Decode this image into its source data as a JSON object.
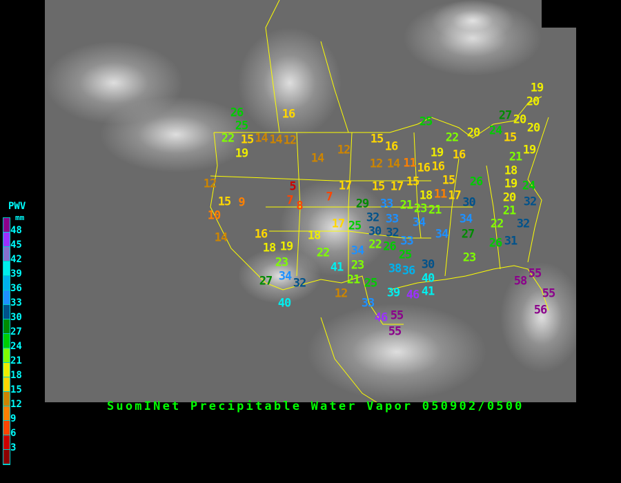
{
  "title": "SuomINet Precipitable Water Vapor 050902/0500",
  "legend": {
    "title": "PWV",
    "unit": "mm",
    "labels": [
      "48",
      "45",
      "42",
      "39",
      "36",
      "33",
      "30",
      "27",
      "24",
      "21",
      "18",
      "15",
      "12",
      "9",
      "6",
      "3"
    ],
    "colors": [
      "#8b008b",
      "#9b30ff",
      "#8470cc",
      "#00eeee",
      "#00b2ee",
      "#1e90ff",
      "#00528b",
      "#008b00",
      "#00cd00",
      "#7fff00",
      "#eeee00",
      "#ffd700",
      "#cd8500",
      "#ff8000",
      "#ff4500",
      "#cd0000",
      "#8b0000"
    ]
  },
  "stations": [
    "26",
    "25",
    "22",
    "15",
    "19",
    "14",
    "14",
    "12",
    "16",
    "14",
    "12",
    "15",
    "16",
    "12",
    "14",
    "11",
    "16",
    "16",
    "19",
    "16",
    "20",
    "25",
    "22",
    "27",
    "20",
    "24",
    "20",
    "15",
    "19",
    "20",
    "19",
    "21",
    "18",
    "24",
    "19",
    "20",
    "21",
    "32",
    "22",
    "32",
    "26",
    "31",
    "26",
    "30",
    "34",
    "27",
    "23",
    "34",
    "34",
    "21",
    "18",
    "17",
    "15",
    "11",
    "15",
    "15",
    "17",
    "17",
    "29",
    "33",
    "21",
    "23",
    "32",
    "33",
    "25",
    "30",
    "32",
    "22",
    "26",
    "33",
    "25",
    "34",
    "23",
    "38",
    "36",
    "30",
    "40",
    "41",
    "39",
    "46",
    "21",
    "25",
    "12",
    "33",
    "46",
    "55",
    "55",
    "58",
    "55",
    "55",
    "56",
    "12",
    "15",
    "9",
    "10",
    "5",
    "7",
    "8",
    "7",
    "17",
    "14",
    "16",
    "18",
    "19",
    "18",
    "22",
    "41",
    "23",
    "34",
    "32",
    "27",
    "40"
  ]
}
